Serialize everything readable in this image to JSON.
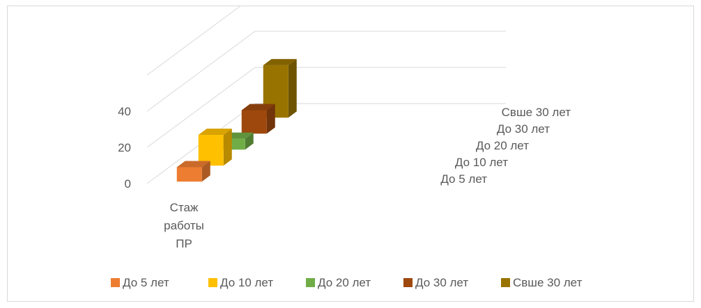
{
  "chart_data": {
    "type": "bar",
    "categories": [
      "Стаж работы ПР"
    ],
    "category_lines": [
      "Стаж",
      "работы",
      "ПР"
    ],
    "series": [
      {
        "name": "До 5 лет",
        "values": [
          8
        ],
        "color": "#ED7D31"
      },
      {
        "name": "До 10 лет",
        "values": [
          17
        ],
        "color": "#FFC000"
      },
      {
        "name": "До 20 лет",
        "values": [
          6
        ],
        "color": "#70AD47"
      },
      {
        "name": "До 30 лет",
        "values": [
          13
        ],
        "color": "#9E480E"
      },
      {
        "name": "Свше 30 лет",
        "values": [
          29
        ],
        "color": "#997300"
      }
    ],
    "y_ticks": [
      0,
      20,
      40
    ],
    "ylim": [
      0,
      60
    ],
    "grid": true,
    "legend_position": "bottom",
    "three_d": true
  }
}
